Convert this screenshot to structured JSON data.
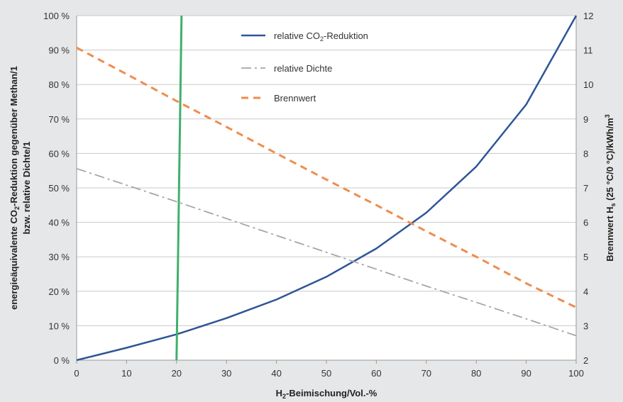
{
  "chart_data": {
    "type": "line",
    "x": [
      0,
      10,
      20,
      30,
      40,
      50,
      60,
      70,
      80,
      90,
      100
    ],
    "xlim": [
      0,
      100
    ],
    "ylim_left": [
      0,
      100
    ],
    "ylim_right": [
      2,
      12
    ],
    "x_ticks": [
      "0",
      "10",
      "20",
      "30",
      "40",
      "50",
      "60",
      "70",
      "80",
      "90",
      "100"
    ],
    "y_left_ticks": [
      "0 %",
      "10 %",
      "20 %",
      "30 %",
      "40 %",
      "50 %",
      "60 %",
      "70 %",
      "80 %",
      "90 %",
      "100 %"
    ],
    "y_right_ticks": [
      "2",
      "3",
      "4",
      "5",
      "6",
      "7",
      "8",
      "9",
      "10",
      "11",
      "12"
    ],
    "xlabel": "H2-Beimischung/Vol.-%",
    "ylabel_left_line1": "energieäquivalente CO2-Reduktion gegenüber Methan/1",
    "ylabel_left_line2": "bzw. relative Dichte/1",
    "ylabel_right": "Brennwert Hs (25 °C/0 °C)/kWh/m3",
    "grid": true,
    "legend_position": "top-center",
    "series": [
      {
        "name": "relative CO2-Reduktion",
        "axis": "left",
        "style": "solid",
        "color": "#2e5596",
        "values": [
          0,
          3.6,
          7.5,
          12.2,
          17.6,
          24.2,
          32.4,
          42.8,
          56.2,
          74.2,
          100
        ]
      },
      {
        "name": "relative Dichte",
        "axis": "left",
        "style": "dash-dot",
        "color": "#a6a6a6",
        "values": [
          55.6,
          50.8,
          46,
          41.1,
          36.2,
          31.3,
          26.4,
          21.5,
          16.8,
          12,
          7.1
        ]
      },
      {
        "name": "Brennwert",
        "axis": "right",
        "style": "dashed",
        "color": "#f08c4e",
        "values": [
          11.07,
          10.3,
          9.52,
          8.77,
          8,
          7.24,
          6.5,
          5.74,
          5,
          4.23,
          3.53
        ]
      }
    ],
    "vertical_line": {
      "x_bottom": 20,
      "x_top": 21,
      "color": "#3fb06a"
    }
  }
}
